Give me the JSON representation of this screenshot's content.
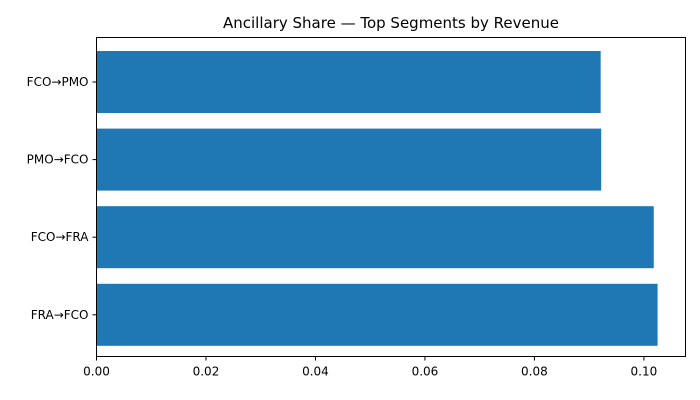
{
  "chart_data": {
    "type": "bar",
    "orientation": "horizontal",
    "title": "Ancillary Share — Top Segments by Revenue",
    "xlabel": "",
    "ylabel": "",
    "categories": [
      "FCO→PMO",
      "PMO→FCO",
      "FCO→FRA",
      "FRA→FCO"
    ],
    "values": [
      0.0921,
      0.0922,
      0.1018,
      0.1025
    ],
    "xlim": [
      0.0,
      0.1076
    ],
    "xticks": [
      0.0,
      0.02,
      0.04,
      0.06,
      0.08,
      0.1
    ],
    "xtick_labels": [
      "0.00",
      "0.02",
      "0.04",
      "0.06",
      "0.08",
      "0.10"
    ],
    "bar_color": "#1f77b4",
    "grid": false,
    "legend": "none"
  }
}
